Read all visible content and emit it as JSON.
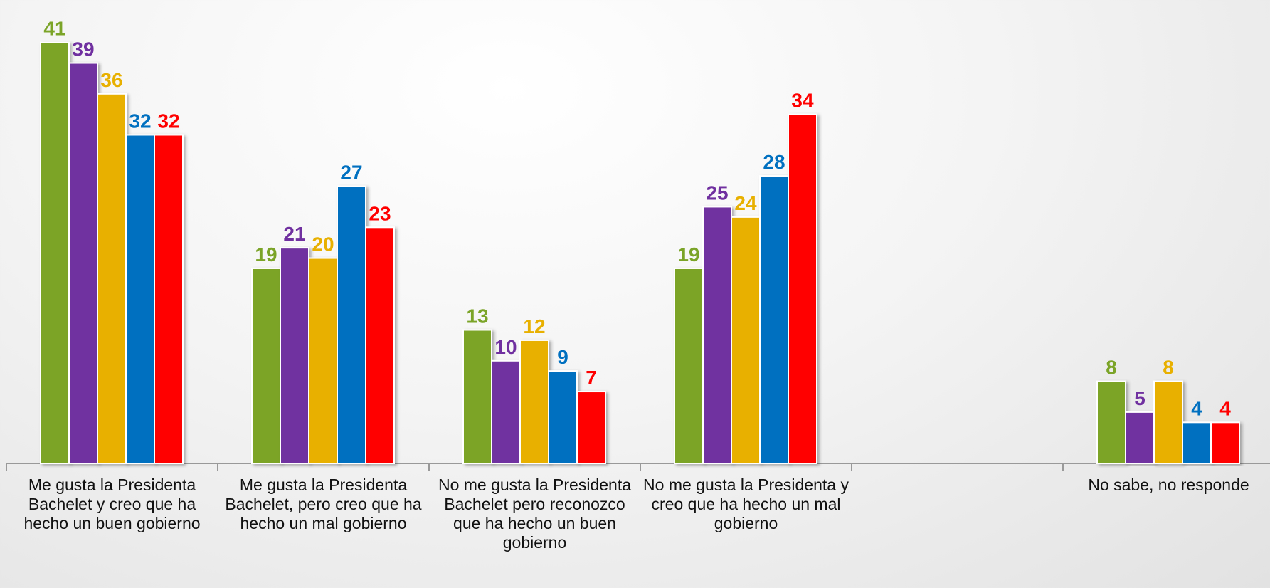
{
  "chart_data": {
    "type": "bar",
    "categories": [
      "Me gusta la Presidenta Bachelet y creo que ha hecho un buen gobierno",
      "Me gusta la Presidenta Bachelet, pero creo que ha hecho un mal gobierno",
      "No me gusta la Presidenta Bachelet pero reconozco que ha hecho un buen gobierno",
      "No me gusta la Presidenta y creo que ha hecho un mal gobierno",
      null,
      "No sabe, no responde"
    ],
    "series": [
      {
        "color": "#7BA428",
        "values": [
          41,
          19,
          13,
          19,
          null,
          8
        ]
      },
      {
        "color": "#7030A0",
        "values": [
          39,
          21,
          10,
          25,
          null,
          5
        ]
      },
      {
        "color": "#E8B000",
        "values": [
          36,
          20,
          12,
          24,
          null,
          8
        ]
      },
      {
        "color": "#0070C0",
        "values": [
          32,
          27,
          9,
          28,
          null,
          4
        ]
      },
      {
        "color": "#FF0000",
        "values": [
          32,
          23,
          7,
          34,
          null,
          4
        ]
      }
    ],
    "ylim": [
      0,
      45
    ]
  }
}
